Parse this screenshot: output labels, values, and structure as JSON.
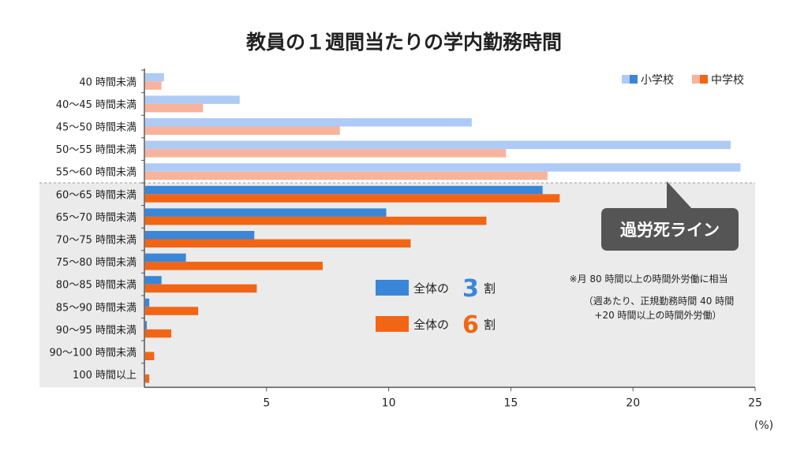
{
  "chart_data": {
    "type": "bar",
    "orientation": "horizontal",
    "title": "教員の１週間当たりの学内勤務時間",
    "categories": [
      "40 時間未満",
      "40～45 時間未満",
      "45～50 時間未満",
      "50～55 時間未満",
      "55～60 時間未満",
      "60～65 時間未満",
      "65～70 時間未満",
      "70～75 時間未満",
      "75～80 時間未満",
      "80～85 時間未満",
      "85～90 時間未満",
      "90～95 時間未満",
      "90～100 時間未満",
      "100 時間以上"
    ],
    "series": [
      {
        "name": "小学校",
        "color_light": "#aecbf5",
        "color_dark": "#3a86d8",
        "values": [
          0.8,
          3.9,
          13.4,
          24.0,
          24.4,
          16.3,
          9.9,
          4.5,
          1.7,
          0.7,
          0.2,
          0.1,
          0.0,
          0.0
        ]
      },
      {
        "name": "中学校",
        "color_light": "#f8b39c",
        "color_dark": "#f26514",
        "values": [
          0.7,
          2.4,
          8.0,
          14.8,
          16.5,
          17.0,
          14.0,
          10.9,
          7.3,
          4.6,
          2.2,
          1.1,
          0.4,
          0.2
        ]
      }
    ],
    "highlight_from_index": 5,
    "highlight_color": "#ebebeb",
    "xlabel": "(%)",
    "xlim": [
      0,
      25
    ],
    "xticks": [
      5,
      10,
      15,
      20,
      25
    ],
    "legend_position": "top-right"
  },
  "annotations": {
    "callout": "過労死ライン",
    "callout_color": "#555555",
    "note_main": "※月 80 時間以上の時間外労働に相当",
    "note_sub1": "（週あたり、正規勤務時間 40 時間",
    "note_sub2": "+20 時間以上の時間外労働）",
    "share_prefix_1": "全体の",
    "share_value_1": "3",
    "share_suffix_1": "割",
    "share_color_1": "#3a86d8",
    "share_prefix_2": "全体の",
    "share_value_2": "6",
    "share_suffix_2": "割",
    "share_color_2": "#f26514"
  }
}
